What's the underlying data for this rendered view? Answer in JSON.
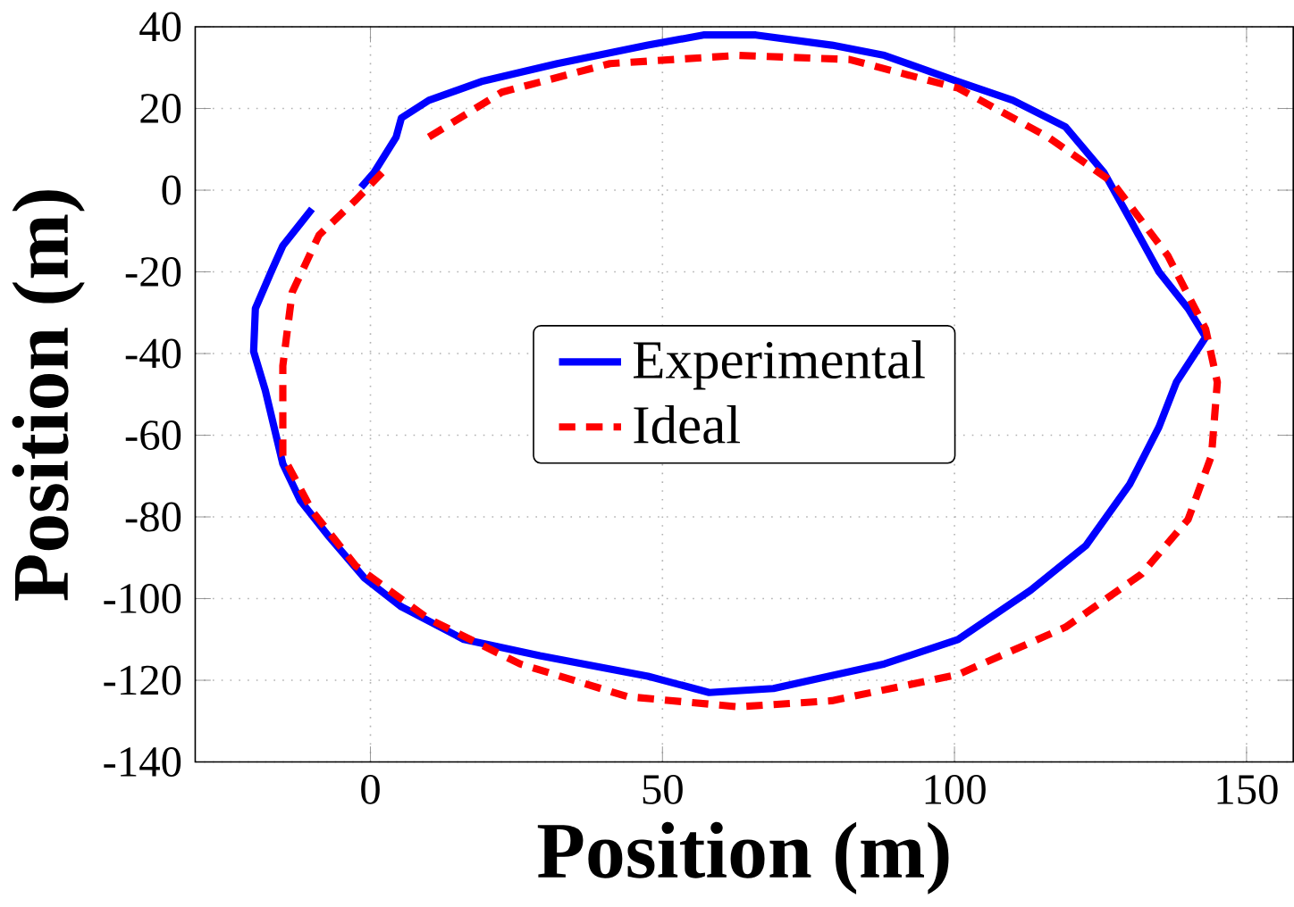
{
  "chart_data": {
    "type": "line",
    "xlabel": "Position (m)",
    "ylabel": "Position (m)",
    "xlim": [
      -30,
      158
    ],
    "ylim": [
      -140,
      40
    ],
    "xticks": [
      0,
      50,
      100,
      150
    ],
    "yticks": [
      -140,
      -120,
      -100,
      -80,
      -60,
      -40,
      -20,
      0,
      20,
      40
    ],
    "grid": true,
    "legend": "center",
    "series": [
      {
        "name": "Experimental",
        "color": "#0000ff",
        "line_style": "solid",
        "x": [
          -10,
          -15,
          -17,
          -19.7,
          -20,
          -18,
          -15,
          -12,
          -7,
          -1,
          5.3,
          16,
          29,
          47.5,
          58,
          69,
          88,
          100.6,
          113,
          122.5,
          130,
          135,
          138,
          143,
          140,
          135,
          130,
          125.6,
          119,
          110,
          100.6,
          88,
          79,
          66,
          57,
          47.5,
          32,
          19,
          10,
          5.3,
          4.4,
          0.6,
          -1.6
        ],
        "values": [
          -4.6,
          -13.6,
          -20,
          -29,
          -39.5,
          -49,
          -67,
          -76,
          -85,
          -95,
          -102,
          -110,
          -114,
          -119,
          -123,
          -122,
          -116,
          -110,
          -98,
          -87,
          -72,
          -58,
          -47,
          -36,
          -29,
          -20,
          -7,
          4.3,
          15.5,
          22,
          26.6,
          33,
          35.5,
          38,
          38,
          35.5,
          31,
          26.6,
          22,
          17.7,
          13,
          4.3,
          0.7
        ]
      },
      {
        "name": "Ideal",
        "color": "#ff0000",
        "line_style": "dashed",
        "x": [
          10,
          22.5,
          41,
          63,
          82,
          100.6,
          116,
          127,
          136.5,
          143,
          145,
          144,
          140,
          132,
          119,
          100.6,
          79,
          63,
          44,
          25.6,
          10,
          -2.5,
          -10,
          -15,
          -15,
          -13.4,
          -8.8,
          -2.5,
          2
        ],
        "values": [
          13,
          24,
          31,
          33,
          32,
          25,
          13,
          2,
          -16,
          -34,
          -47,
          -65,
          -80.6,
          -94,
          -107,
          -118.6,
          -125,
          -126.5,
          -124,
          -116,
          -105,
          -92,
          -78.5,
          -65,
          -43,
          -25,
          -11,
          -2.4,
          4.3
        ]
      }
    ]
  }
}
